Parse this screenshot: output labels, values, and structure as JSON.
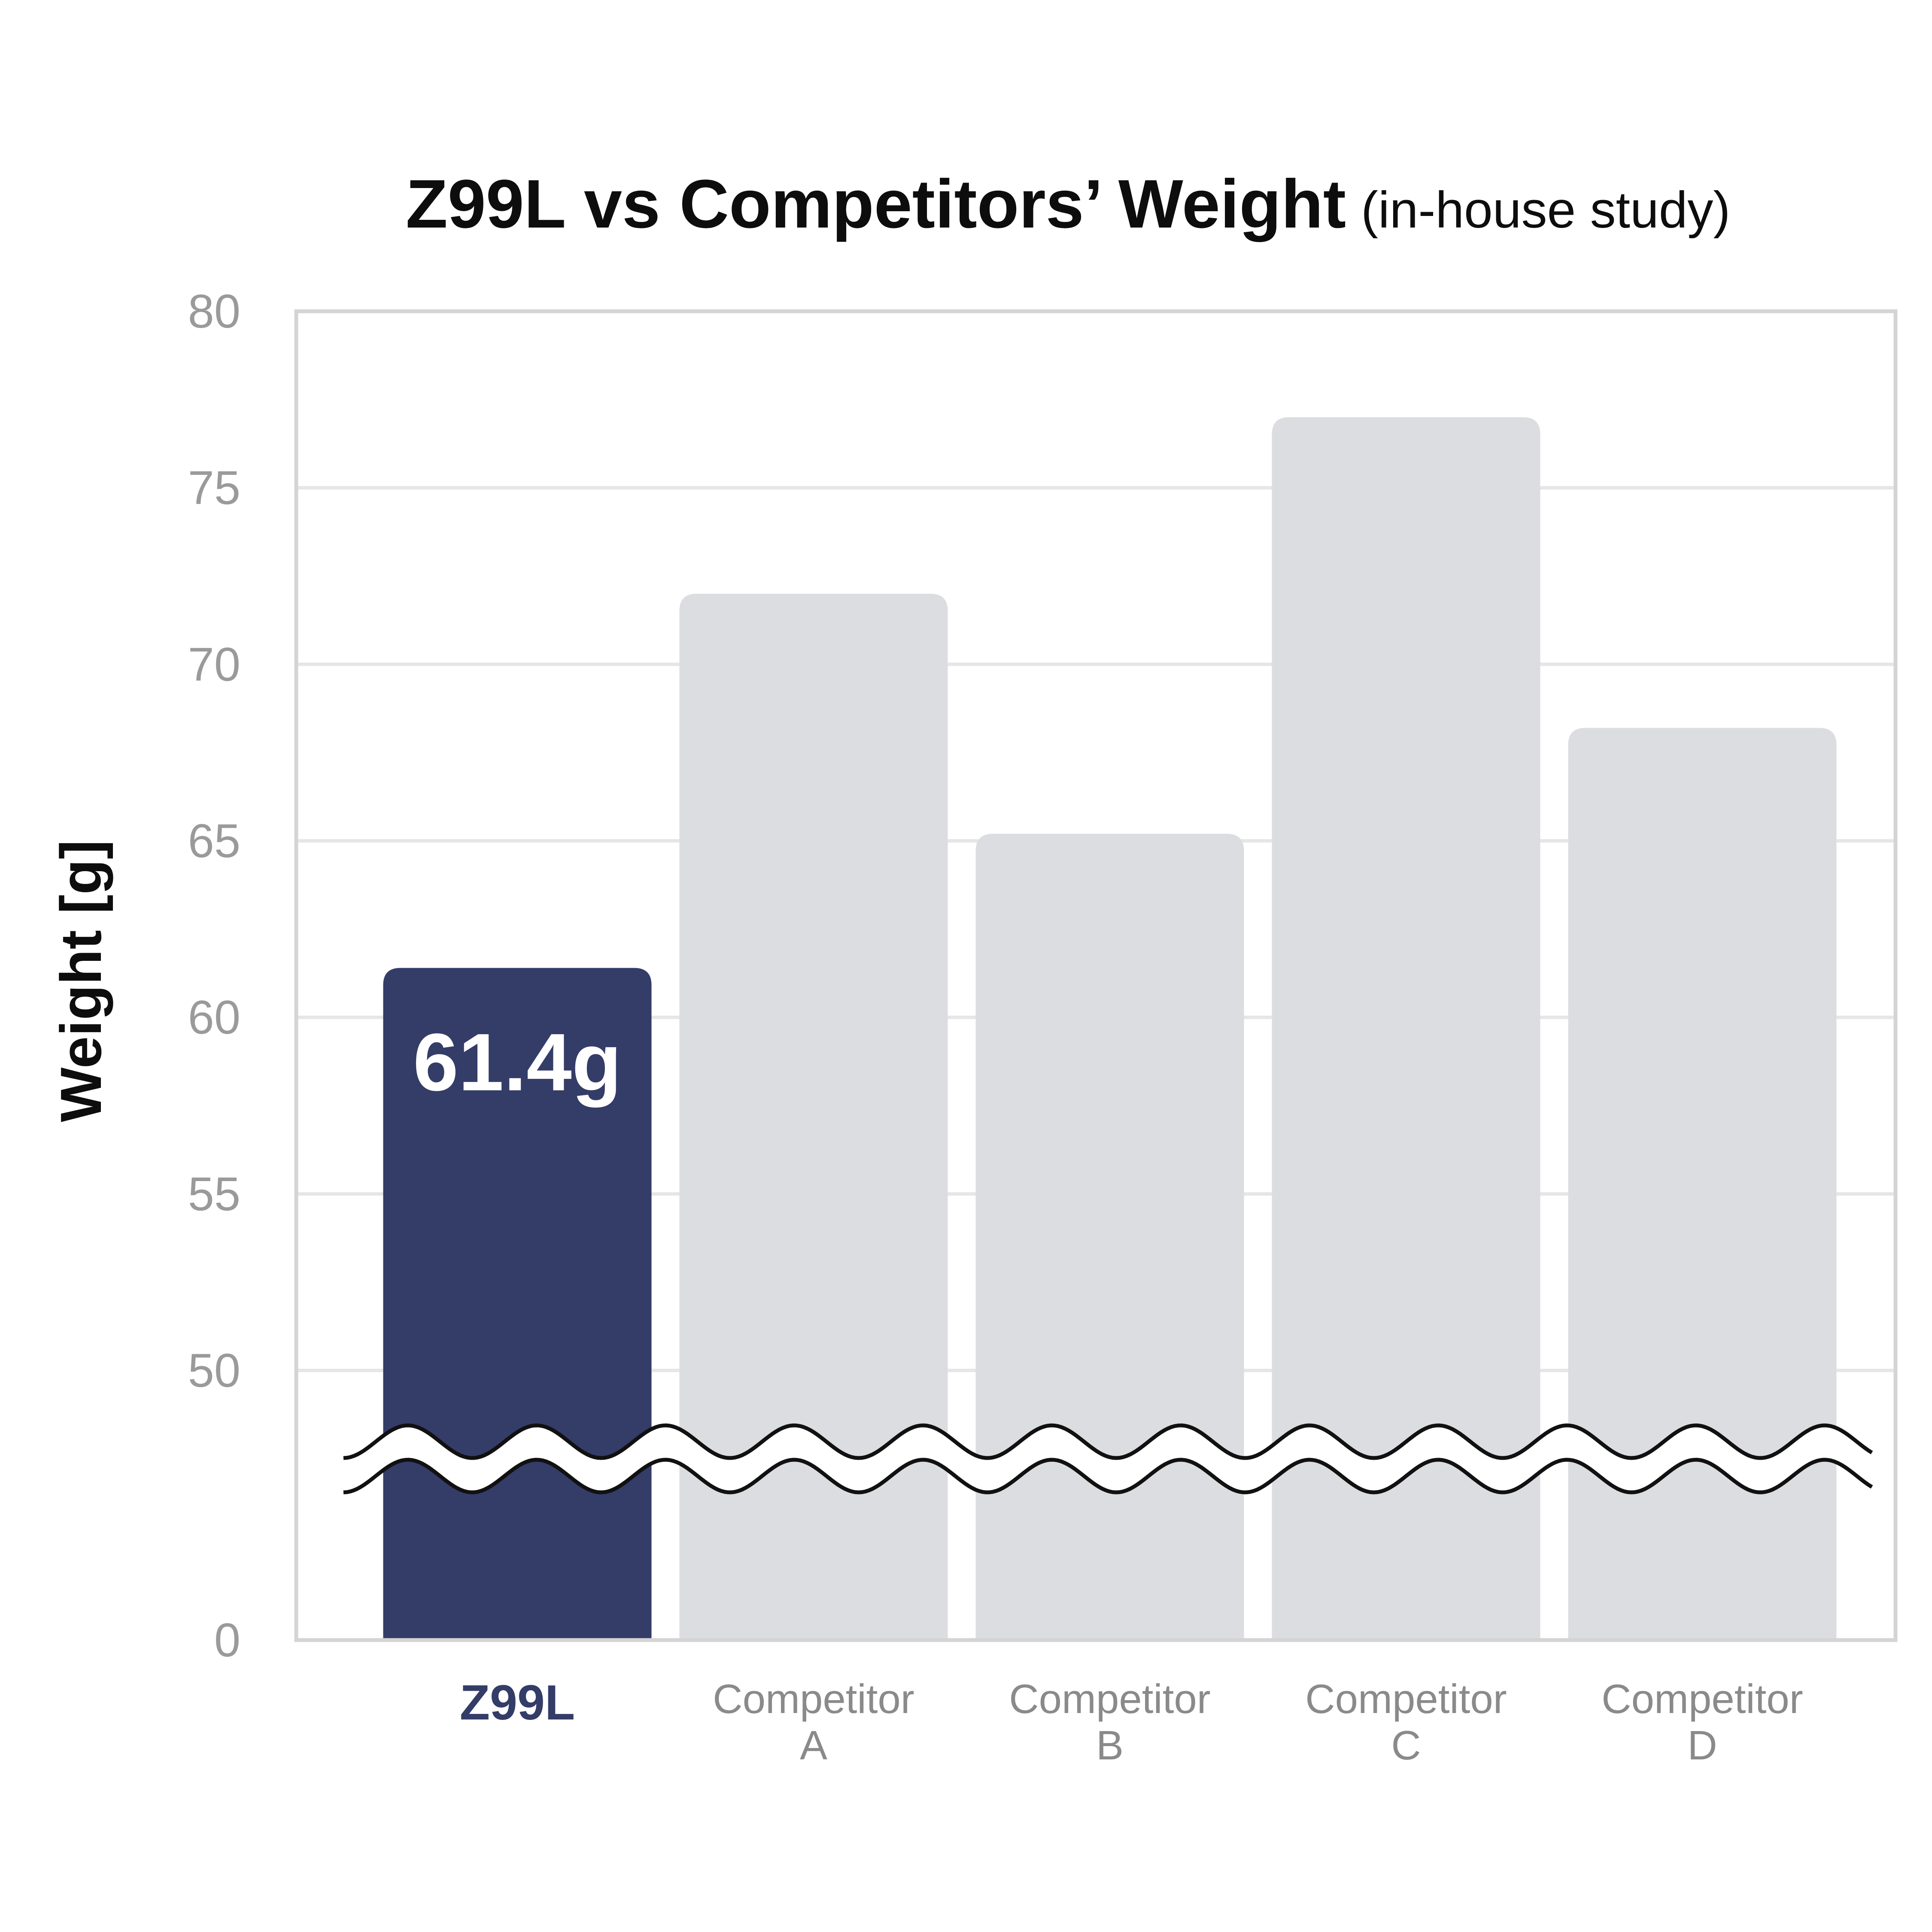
{
  "colors": {
    "highlight": "#343c68",
    "bar": "#dcdde0",
    "grid": "#e6e6e6",
    "frame": "#d4d4d4",
    "tick_text": "#9a9a9a"
  },
  "chart_data": {
    "type": "bar",
    "title": "Z99L vs Competitors’ Weight",
    "subtitle": "(in-house study)",
    "xlabel": "",
    "ylabel": "Weight [g]",
    "categories": [
      [
        "Z99L"
      ],
      [
        "Competitor",
        "A"
      ],
      [
        "Competitor",
        "B"
      ],
      [
        "Competitor",
        "C"
      ],
      [
        "Competitor",
        "D"
      ]
    ],
    "values": [
      61.4,
      72,
      65.2,
      77,
      68.2
    ],
    "highlight_index": 0,
    "data_labels": [
      "61.4g",
      "",
      "",
      "",
      ""
    ],
    "yticks": [
      0,
      50,
      55,
      60,
      65,
      70,
      75,
      80
    ],
    "ylim": [
      0,
      80
    ],
    "axis_break": true,
    "grid": true,
    "legend": "none"
  }
}
